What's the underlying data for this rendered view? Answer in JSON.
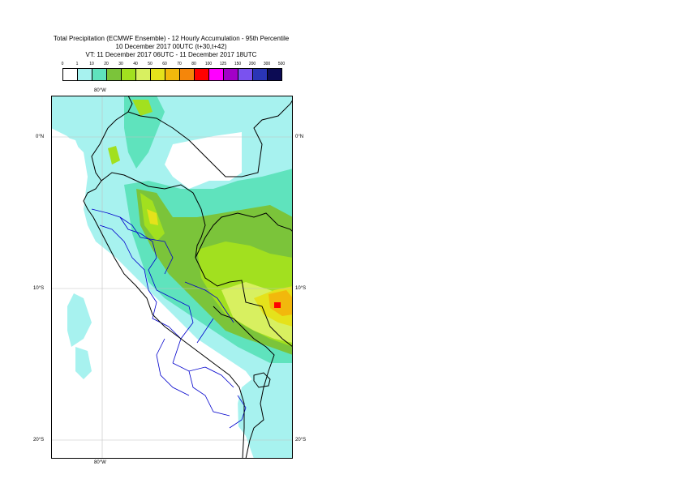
{
  "title": {
    "line1": "Total Precipitation (ECMWF Ensemble) - 12 Hourly Accumulation - 95th Percentile",
    "line2": "10 December 2017 00UTC (t+30,t+42)",
    "line3": "VT: 11 December 2017 06UTC - 11 December 2017 18UTC"
  },
  "legend": {
    "labels": [
      "0",
      "1",
      "10",
      "20",
      "30",
      "40",
      "50",
      "60",
      "70",
      "80",
      "100",
      "125",
      "150",
      "200",
      "300",
      "500"
    ],
    "colors": [
      "#ffffff",
      "#a7f2ef",
      "#5fe3bd",
      "#7bc43a",
      "#a2e01f",
      "#d8f060",
      "#e5e21b",
      "#f2b80c",
      "#f5860a",
      "#ff0000",
      "#ff00ff",
      "#a200c8",
      "#7a52ef",
      "#2a35b6",
      "#0c0b54"
    ]
  },
  "axes": {
    "top_lon": "80°W",
    "bottom_lon": "80°W",
    "left_lats": [
      "0°N",
      "10°S",
      "20°S"
    ],
    "right_lats": [
      "0°N",
      "10°S",
      "20°S"
    ]
  },
  "colors": {
    "precip_light": "#a7f2ef",
    "precip_teal": "#5fe3bd",
    "precip_green": "#7bc43a",
    "precip_lime": "#a2e01f",
    "precip_yellow": "#e5e21b",
    "precip_pale_yellow": "#d8f060",
    "precip_orange": "#f2b80c",
    "precip_red": "#ff0000",
    "border": "#000000",
    "regions": "#0000cc",
    "grid": "#c0c0c0"
  }
}
